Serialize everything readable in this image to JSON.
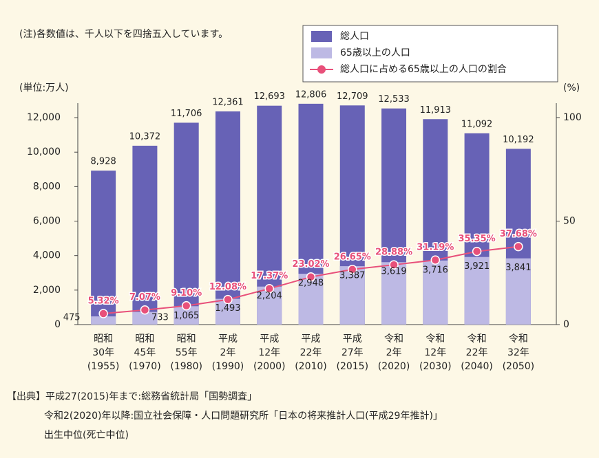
{
  "chart_data": {
    "type": "bar",
    "note": "(注)各数値は、千人以下を四捨五入しています。",
    "y_label": "(単位:万人)",
    "y2_label": "(%)",
    "categories": [
      [
        "昭和",
        "30年",
        "(1955)"
      ],
      [
        "昭和",
        "45年",
        "(1970)"
      ],
      [
        "昭和",
        "55年",
        "(1980)"
      ],
      [
        "平成",
        "2年",
        "(1990)"
      ],
      [
        "平成",
        "12年",
        "(2000)"
      ],
      [
        "平成",
        "22年",
        "(2010)"
      ],
      [
        "平成",
        "27年",
        "(2015)"
      ],
      [
        "令和",
        "2年",
        "(2020)"
      ],
      [
        "令和",
        "12年",
        "(2030)"
      ],
      [
        "令和",
        "22年",
        "(2040)"
      ],
      [
        "令和",
        "32年",
        "(2050)"
      ]
    ],
    "series": [
      {
        "name": "総人口",
        "color": "#6762b6",
        "values": [
          8928,
          10372,
          11706,
          12361,
          12693,
          12806,
          12709,
          12533,
          11913,
          11092,
          10192
        ],
        "value_labels": [
          "8,928",
          "10,372",
          "11,706",
          "12,361",
          "12,693",
          "12,806",
          "12,709",
          "12,533",
          "11,913",
          "11,092",
          "10,192"
        ]
      },
      {
        "name": "65歳以上の人口",
        "color": "#bdb9e4",
        "values": [
          475,
          733,
          1065,
          1493,
          2204,
          2948,
          3387,
          3619,
          3716,
          3921,
          3841
        ],
        "value_labels": [
          "475",
          "733",
          "1,065",
          "1,493",
          "2,204",
          "2,948",
          "3,387",
          "3,619",
          "3,716",
          "3,921",
          "3,841"
        ]
      },
      {
        "name": "総人口に占める65歳以上の人口の割合",
        "color": "#e8507a",
        "type": "line",
        "axis": "y2",
        "values": [
          5.32,
          7.07,
          9.1,
          12.08,
          17.37,
          23.02,
          26.65,
          28.88,
          31.19,
          35.35,
          37.68
        ],
        "value_labels": [
          "5.32%",
          "7.07%",
          "9.10%",
          "12.08%",
          "17.37%",
          "23.02%",
          "26.65%",
          "28.88%",
          "31.19%",
          "35.35%",
          "37.68%"
        ]
      }
    ],
    "ylim": [
      0,
      13000
    ],
    "yticks": [
      0,
      {
        "value": 2000,
        "label": "2,000"
      },
      {
        "value": 4000,
        "label": "4,000"
      },
      {
        "value": 6000,
        "label": "6,000"
      },
      {
        "value": 8000,
        "label": "8,000"
      },
      {
        "value": 10000,
        "label": "10,000"
      },
      {
        "value": 12000,
        "label": "12,000"
      }
    ],
    "y2lim": [
      0,
      108.3
    ],
    "y2ticks": [
      0,
      50,
      100
    ],
    "source": [
      "【出典】平成27(2015)年まで:総務省統計局「国勢調査」",
      "令和2(2020)年以降:国立社会保障・人口問題研究所「日本の将来推計人口(平成29年推計)」",
      "出生中位(死亡中位)"
    ]
  }
}
